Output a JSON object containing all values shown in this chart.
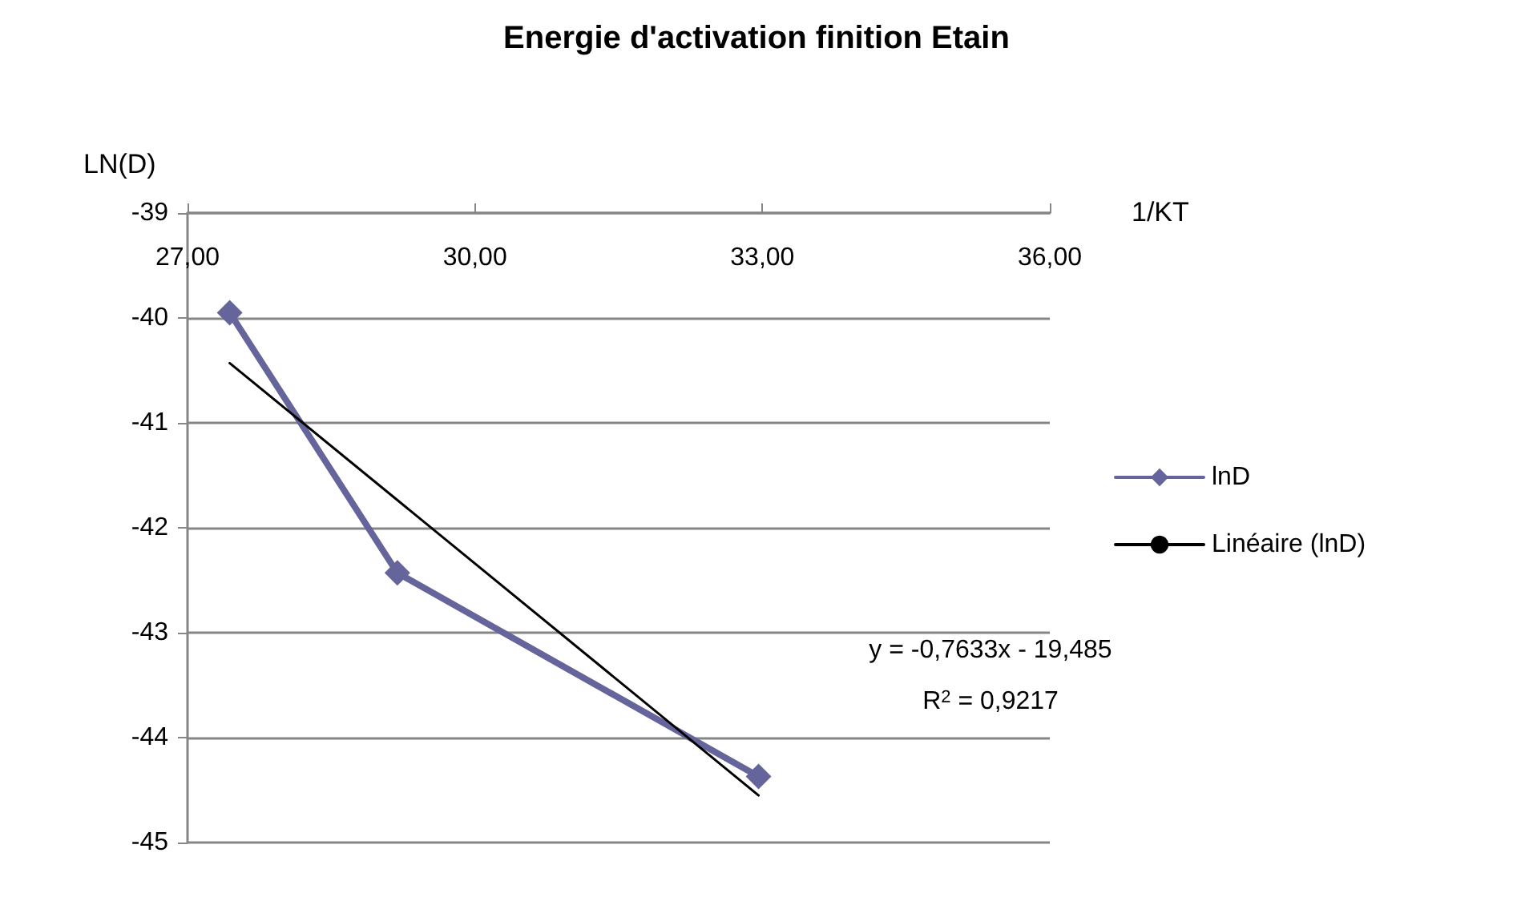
{
  "chart_data": {
    "type": "line",
    "title": "Energie d'activation finition Etain",
    "xlabel": "1/KT",
    "ylabel": "LN(D)",
    "xlim": [
      27,
      36
    ],
    "xticks": [
      {
        "value": 27,
        "label": "27,00"
      },
      {
        "value": 30,
        "label": "30,00"
      },
      {
        "value": 33,
        "label": "33,00"
      },
      {
        "value": 36,
        "label": "36,00"
      }
    ],
    "ylim": [
      -45,
      -39
    ],
    "yticks": [
      -45,
      -44,
      -43,
      -42,
      -41,
      -40,
      -39
    ],
    "grid": "y",
    "legend": "right",
    "marker": "diamond",
    "line_style": "solid",
    "series": [
      {
        "name": "lnD",
        "color": "#65659b",
        "x": [
          27.44,
          29.19,
          32.96
        ],
        "values": [
          -39.95,
          -42.43,
          -44.37
        ]
      },
      {
        "name": "Linéaire (lnD)",
        "type": "line",
        "color": "#000000",
        "marker": "none",
        "x": [
          27.44,
          32.96
        ],
        "values": [
          -40.43,
          -44.55
        ]
      }
    ],
    "annotations": [
      "y = -0,7633x - 19,485",
      "R$^{2}$ = 0,9217"
    ]
  }
}
